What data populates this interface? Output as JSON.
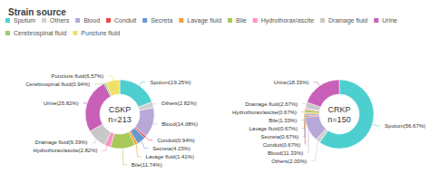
{
  "chart_data": {
    "type": "pie",
    "title": "Strain source",
    "categories": [
      "Sputum",
      "Others",
      "Blood",
      "Conduit",
      "Secreta",
      "Lavage fluid",
      "Bile",
      "Hydrothorax/ascite",
      "Drainage fluid",
      "Urine",
      "Cerebrospinal fluid",
      "Puncture fluid"
    ],
    "colors": [
      "#4DCFCF",
      "#D0D0D0",
      "#B8A8D8",
      "#E84848",
      "#6898D0",
      "#F0A030",
      "#A8C858",
      "#FF90C8",
      "#C8C8C8",
      "#C860B8",
      "#A0CC70",
      "#F0E068"
    ],
    "legend": "upper left",
    "data_labels": true,
    "series": [
      {
        "name": "CSKP\nn=213",
        "values": [
          19.25,
          2.82,
          14.08,
          0.94,
          4.23,
          1.41,
          11.74,
          2.82,
          9.39,
          25.82,
          0.94,
          6.57
        ],
        "value_labels": [
          "Sputum(19.25%)",
          "Others(2.82%)",
          "Blood(14.08%)",
          "Conduit(0.94%)",
          "Secreta(4.23%)",
          "Lavage fluid(1.41%)",
          "Bile(11.74%)",
          "Hydrothorax/ascite(2.82%)",
          "Drainage fluid(9.39%)",
          "Urine(25.82%)",
          "Cerebrospinal fluid(0.94%)",
          "Puncture fluid(6.57%)"
        ]
      },
      {
        "name": "CRKP\nn=150",
        "values": [
          56.67,
          2.0,
          11.33,
          0.67,
          0.67,
          0.67,
          1.33,
          0.67,
          2.67,
          18.33,
          0.0,
          0.0
        ],
        "value_labels": [
          "Sputum(56.67%)",
          "Others(2.00%)",
          "Blood(11.33%)",
          "Conduit(0.67%)",
          "Secreta(0.67%)",
          "Lavage fluid(0.67%)",
          "Bile(1.33%)",
          "Hydrothorax/ascite(0.67%)",
          "Drainage fluid(2.67%)",
          "Urine(18.33%)",
          null,
          null
        ]
      }
    ]
  }
}
